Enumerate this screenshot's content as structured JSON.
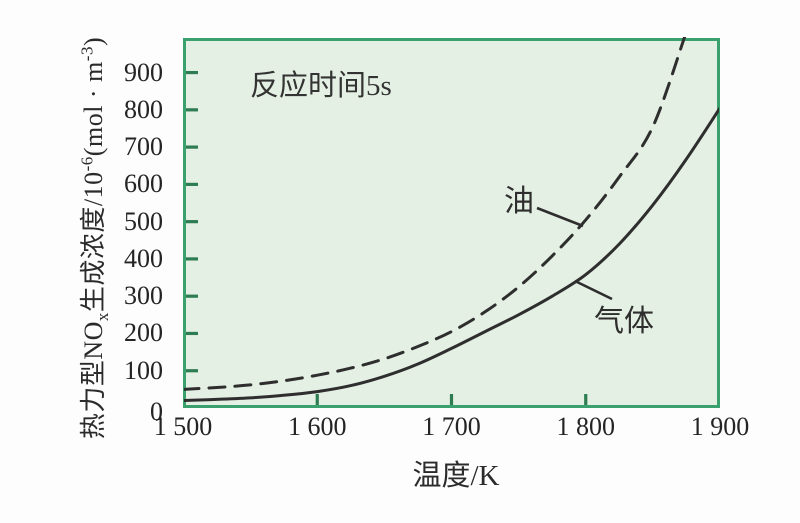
{
  "figure": {
    "annotation": "反应时间5s",
    "xlabel": "温度/K",
    "ylabel_text": "热力型NOx生成浓度/10⁻⁶(mol·m⁻³)",
    "ylabel_parts": {
      "p1": "热力型NO",
      "sub1": "x",
      "p2": "生成浓度/10",
      "sup1": "-6",
      "p3": "(mol · m",
      "sup2": "-3",
      "p4": ")"
    },
    "curve_labels": {
      "oil": "油",
      "gas": "气体"
    }
  },
  "colors": {
    "plot_background": "#e4f0e3",
    "plot_border": "#3aa06e",
    "tick_mark": "#2e7d52",
    "curve": "#2e2e2e",
    "text": "#242424"
  },
  "chart_data": {
    "type": "line",
    "title": "",
    "annotation": "反应时间5s",
    "xlabel": "温度/K",
    "ylabel": "热力型NOx生成浓度/10⁻⁶(mol·m⁻³)",
    "xlim": [
      1500,
      1900
    ],
    "ylim": [
      0,
      1000
    ],
    "grid": false,
    "legend_position": "inline-labels",
    "x_ticks": [
      {
        "value": 1500,
        "label": "1 500",
        "mark": false
      },
      {
        "value": 1600,
        "label": "1 600",
        "mark": true
      },
      {
        "value": 1700,
        "label": "1 700",
        "mark": true
      },
      {
        "value": 1800,
        "label": "1 800",
        "mark": true
      },
      {
        "value": 1900,
        "label": "1 900",
        "mark": false
      }
    ],
    "y_ticks": [
      {
        "value": 0,
        "label": "0",
        "mark": false
      },
      {
        "value": 100,
        "label": "100",
        "mark": true
      },
      {
        "value": 200,
        "label": "200",
        "mark": true
      },
      {
        "value": 300,
        "label": "300",
        "mark": true
      },
      {
        "value": 400,
        "label": "400",
        "mark": true
      },
      {
        "value": 500,
        "label": "500",
        "mark": true
      },
      {
        "value": 600,
        "label": "600",
        "mark": true
      },
      {
        "value": 700,
        "label": "700",
        "mark": true
      },
      {
        "value": 800,
        "label": "800",
        "mark": true
      },
      {
        "value": 900,
        "label": "900",
        "mark": true
      }
    ],
    "series": [
      {
        "name": "油",
        "style": "dashed",
        "x": [
          1500,
          1525,
          1550,
          1575,
          1600,
          1625,
          1650,
          1675,
          1700,
          1725,
          1750,
          1775,
          1800,
          1825,
          1850,
          1875
        ],
        "y": [
          50,
          55,
          62,
          73,
          88,
          107,
          132,
          165,
          205,
          258,
          325,
          408,
          505,
          620,
          755,
          1010
        ]
      },
      {
        "name": "气体",
        "style": "solid",
        "x": [
          1500,
          1525,
          1550,
          1575,
          1600,
          1625,
          1650,
          1675,
          1700,
          1725,
          1750,
          1775,
          1800,
          1825,
          1850,
          1875,
          1900
        ],
        "y": [
          20,
          23,
          27,
          34,
          44,
          60,
          85,
          118,
          160,
          205,
          250,
          300,
          358,
          440,
          545,
          668,
          805
        ]
      }
    ]
  }
}
